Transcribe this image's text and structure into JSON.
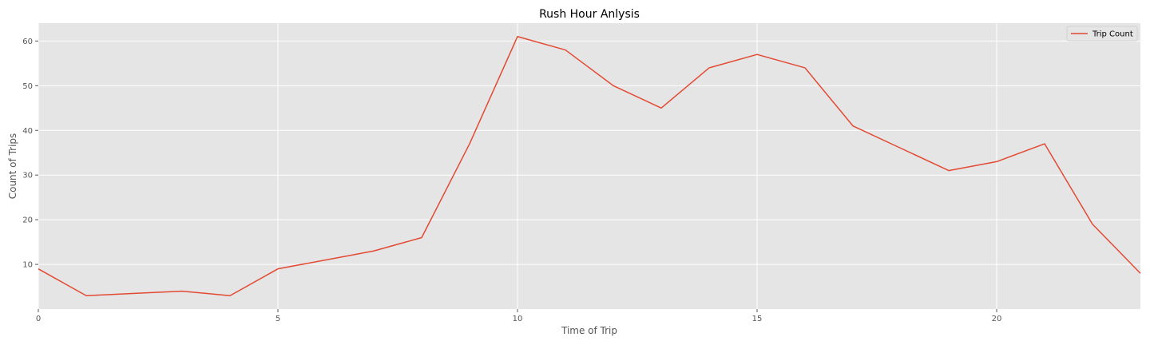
{
  "chart_data": {
    "type": "line",
    "title": "Rush Hour Anlysis",
    "xlabel": "Time of Trip",
    "ylabel": "Count of Trips",
    "xlim": [
      0,
      23
    ],
    "ylim": [
      0,
      64
    ],
    "xticks": [
      0,
      5,
      10,
      15,
      20
    ],
    "yticks": [
      10,
      20,
      30,
      40,
      50,
      60
    ],
    "grid": true,
    "legend": "top-right",
    "series": [
      {
        "name": "Trip Count",
        "color": "#e24a33",
        "x": [
          0,
          1,
          2,
          3,
          4,
          5,
          6,
          7,
          8,
          9,
          10,
          11,
          12,
          13,
          14,
          15,
          16,
          17,
          18,
          19,
          20,
          21,
          22,
          23
        ],
        "y": [
          9,
          3,
          3.5,
          4,
          3,
          9,
          11,
          13,
          16,
          37,
          61,
          58,
          50,
          45,
          54,
          57,
          54,
          41,
          36,
          31,
          33,
          37,
          19,
          8
        ]
      }
    ]
  }
}
